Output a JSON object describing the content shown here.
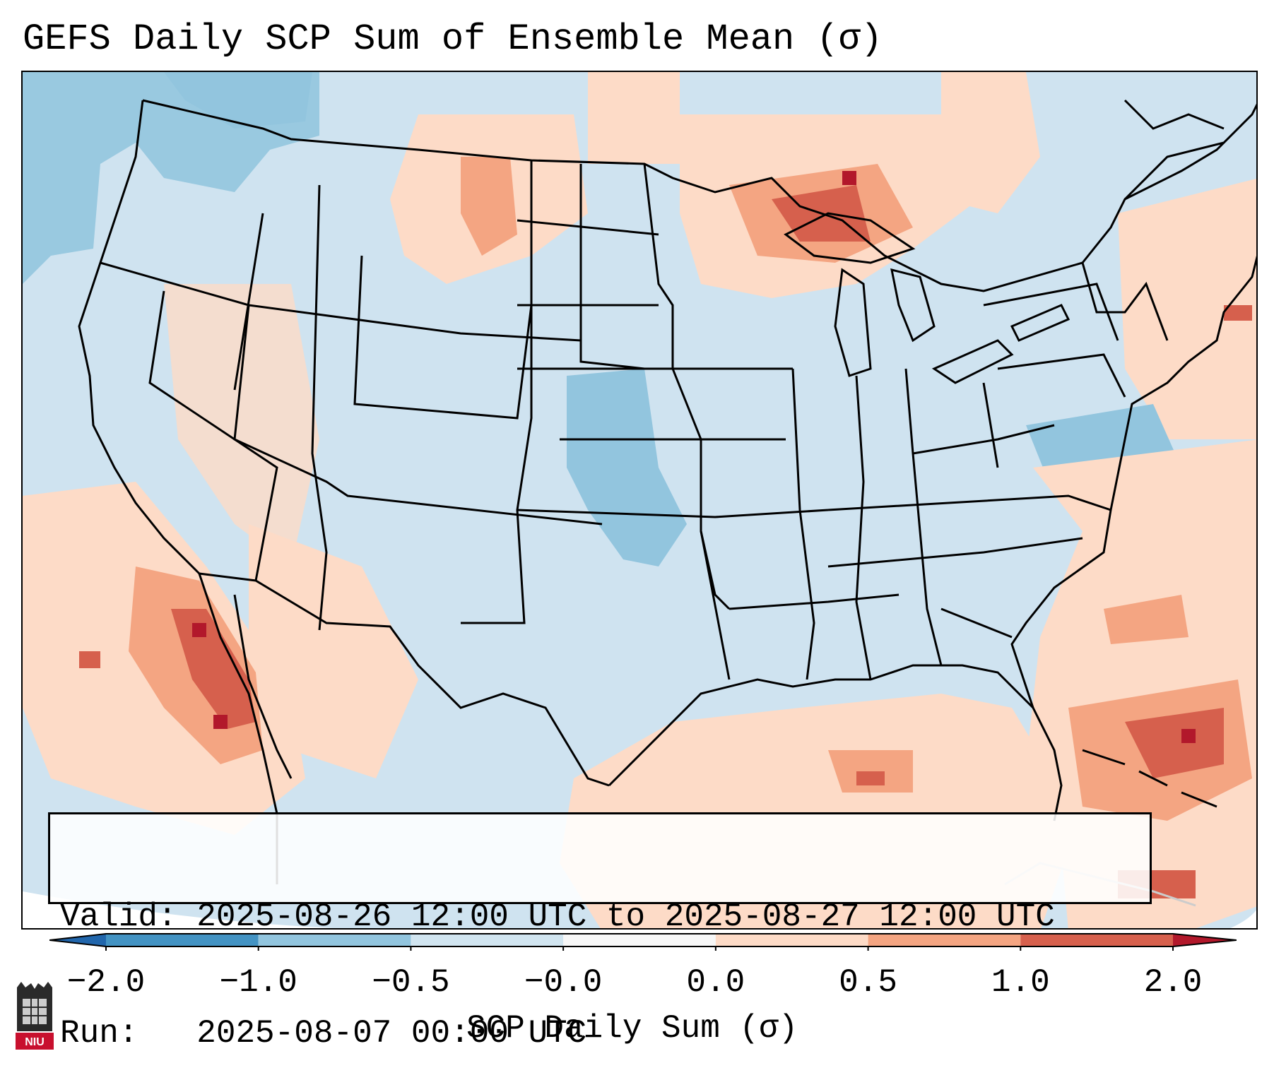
{
  "title": "GEFS Daily SCP Sum of Ensemble Mean (σ)",
  "info": {
    "valid_line": "Valid: 2025-08-26 12:00 UTC to 2025-08-27 12:00 UTC",
    "run_line": "Run:   2025-08-07 00:00 UTC"
  },
  "colorbar": {
    "label": "SCP Daily Sum (σ)",
    "ticks": [
      "−2.0",
      "−1.0",
      "−0.5",
      "−0.0",
      "0.0",
      "0.5",
      "1.0",
      "2.0"
    ],
    "bins": [
      {
        "range": "< -2.0",
        "color": "#2166ac"
      },
      {
        "range": "-2.0 to -1.0",
        "color": "#4393c3"
      },
      {
        "range": "-1.0 to -0.5",
        "color": "#92c5de"
      },
      {
        "range": "-0.5 to -0.0",
        "color": "#d1e5f0"
      },
      {
        "range": "-0.0 to 0.0",
        "color": "#f7f7f7"
      },
      {
        "range": "0.0 to 0.5",
        "color": "#fddbc7"
      },
      {
        "range": "0.5 to 1.0",
        "color": "#f4a582"
      },
      {
        "range": "1.0 to 2.0",
        "color": "#d6604d"
      },
      {
        "range": "> 2.0",
        "color": "#b2182b"
      }
    ]
  },
  "map_regions": [
    {
      "area": "Upper Great Lakes / Lake Superior",
      "level": "1.0 to 2.0"
    },
    {
      "area": "Gulf of California / NW Mexico",
      "level": "1.0 to 2.0"
    },
    {
      "area": "Western Atlantic off Southeast US",
      "level": "1.0 to 2.0"
    },
    {
      "area": "Gulf of Mexico",
      "level": "0.0 to 0.5"
    },
    {
      "area": "Montana / Wyoming",
      "level": "0.0 to 0.5"
    },
    {
      "area": "Kansas / Oklahoma",
      "level": "-1.0 to -0.5"
    },
    {
      "area": "Chesapeake Bay region",
      "level": "-1.0 to -0.5"
    },
    {
      "area": "Pacific Northwest offshore",
      "level": "-1.0 to -0.5"
    },
    {
      "area": "Central and Eastern US interior",
      "level": "-0.5 to -0.0"
    }
  ],
  "logo": {
    "text": "NIU"
  }
}
